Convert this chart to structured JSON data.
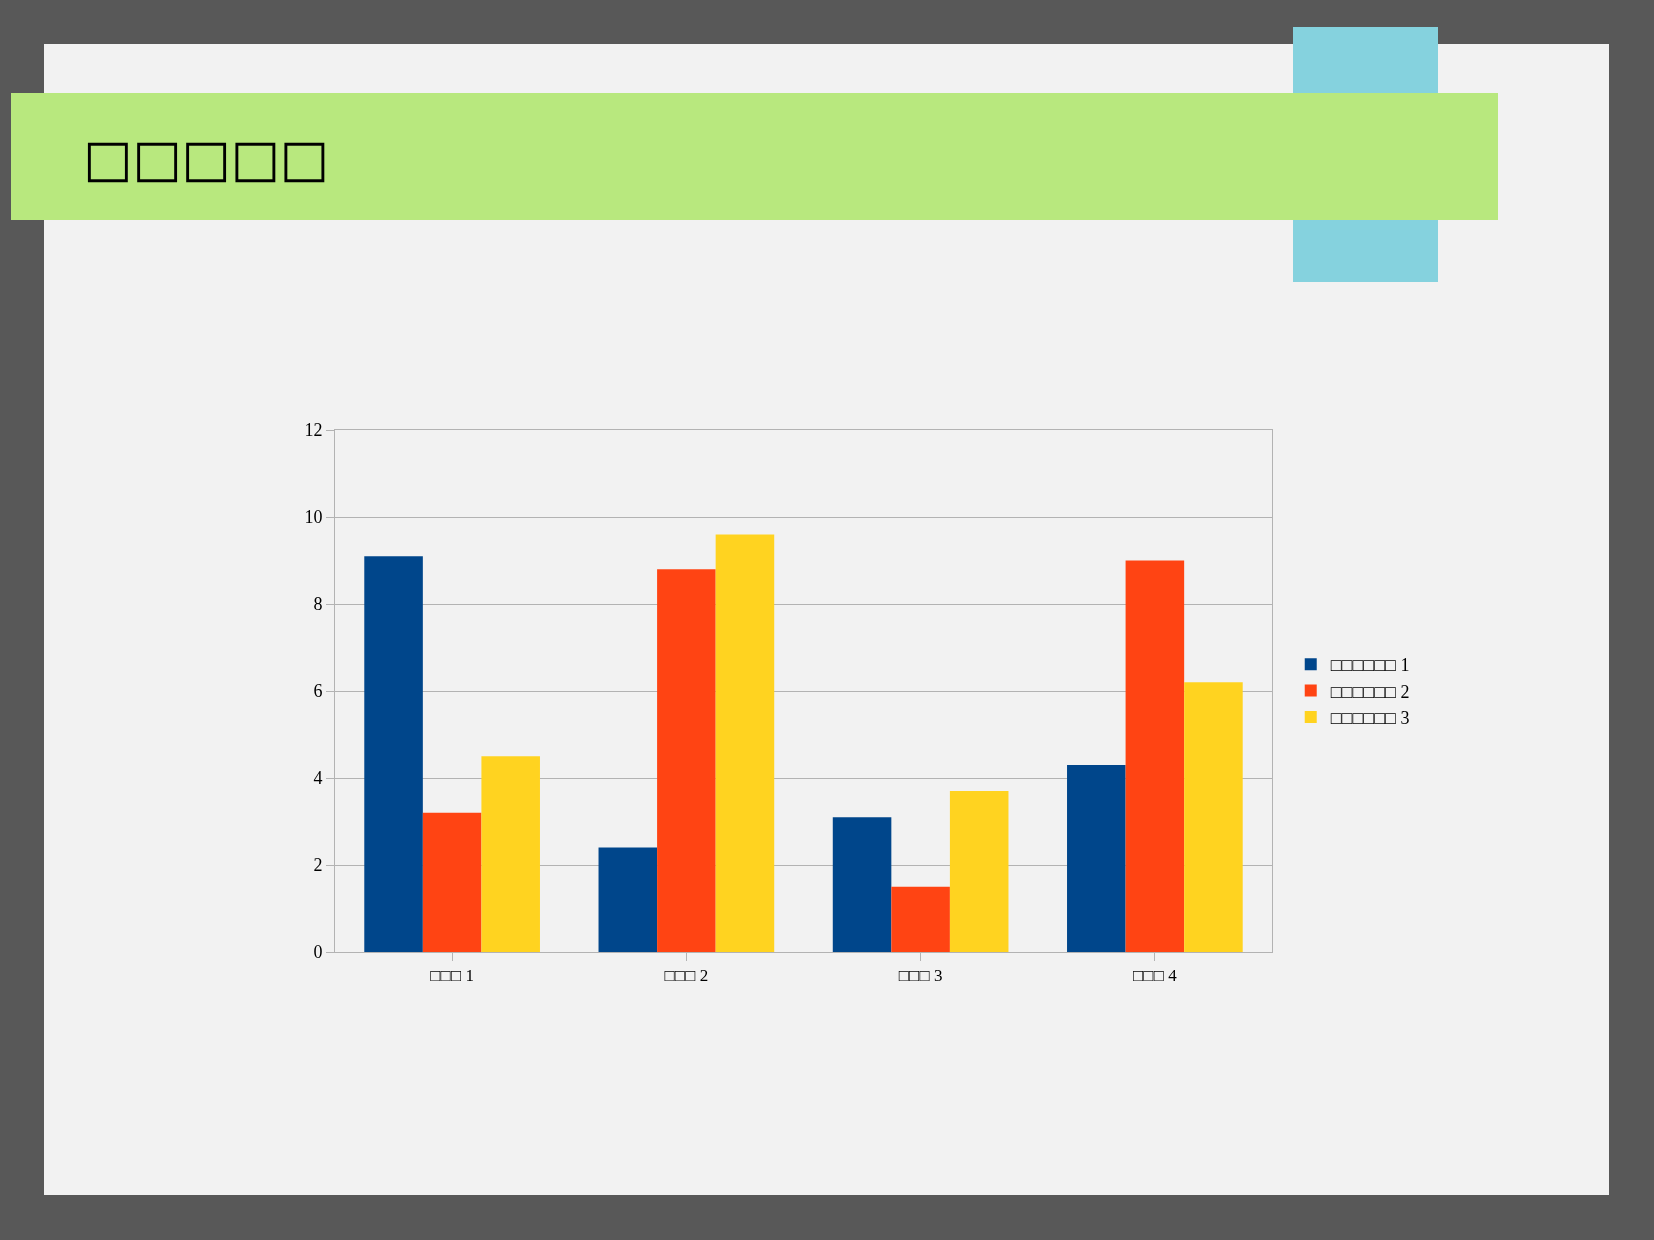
{
  "chart_data": {
    "type": "bar",
    "title": "□□□□□",
    "categories": [
      "□□□ 1",
      "□□□ 2",
      "□□□ 3",
      "□□□ 4"
    ],
    "series": [
      {
        "name": "□□□□□□ 1",
        "color": "#00468b",
        "values": [
          9.1,
          2.4,
          3.1,
          4.3
        ]
      },
      {
        "name": "□□□□□□ 2",
        "color": "#ff4413",
        "values": [
          3.2,
          8.8,
          1.5,
          9.0
        ]
      },
      {
        "name": "□□□□□□ 3",
        "color": "#ffd320",
        "values": [
          4.5,
          9.6,
          3.7,
          6.2
        ]
      }
    ],
    "ylim": [
      0,
      12
    ],
    "yticks": [
      0,
      2,
      4,
      6,
      8,
      10,
      12
    ],
    "grid": "y",
    "legend": "right"
  }
}
